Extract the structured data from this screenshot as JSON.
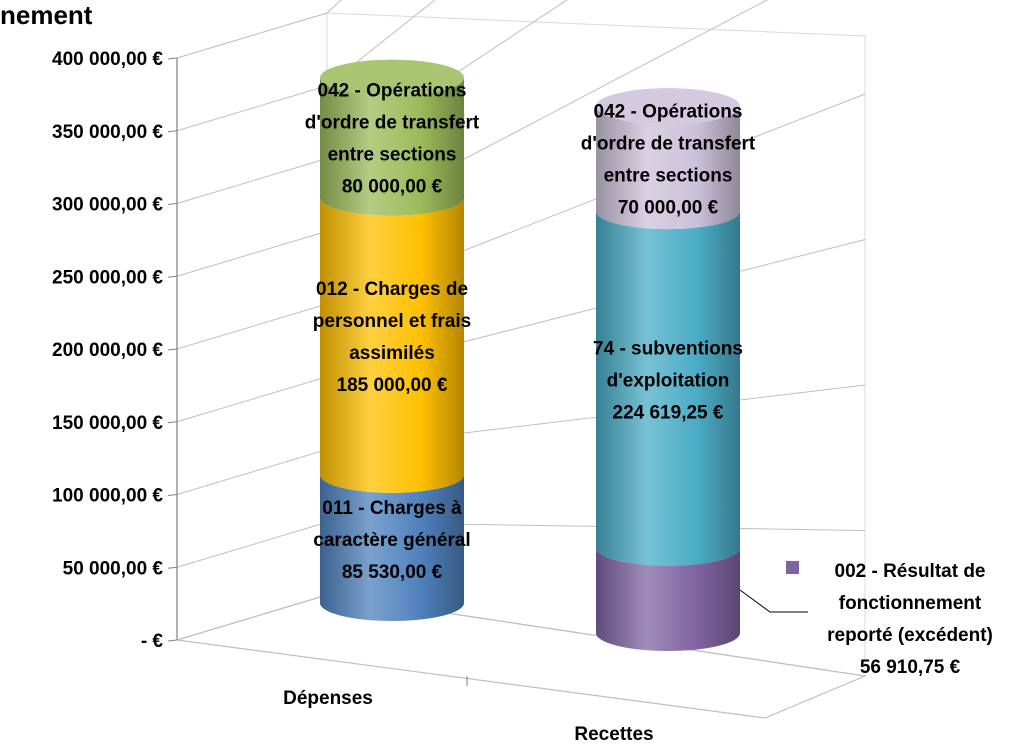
{
  "chart_data": {
    "type": "bar",
    "title": "nement",
    "categories": [
      "Dépenses",
      "Recettes"
    ],
    "ylim": [
      0,
      400000
    ],
    "yticks": [
      0,
      50000,
      100000,
      150000,
      200000,
      250000,
      300000,
      350000,
      400000
    ],
    "ytick_labels": [
      "-  €",
      "50 000,00 €",
      "100 000,00 €",
      "150 000,00 €",
      "200 000,00 €",
      "250 000,00 €",
      "300 000,00 €",
      "350 000,00 €",
      "400 000,00 €"
    ],
    "grid": true,
    "stacked": true,
    "style": "3d-cylinder",
    "stacks": [
      {
        "category": "Dépenses",
        "segments": [
          {
            "value": 85530.0,
            "color": "#4f81bd",
            "label_lines": [
              "011 - Charges à",
              "caractère général",
              "85 530,00 €"
            ]
          },
          {
            "value": 185000.0,
            "color": "#ffc000",
            "label_lines": [
              "012 - Charges de",
              "personnel et frais",
              "assimilés",
              "185 000,00 €"
            ]
          },
          {
            "value": 80000.0,
            "color": "#9bbb59",
            "label_lines": [
              "042 - Opérations",
              "d'ordre de transfert",
              "entre sections",
              "80 000,00 €"
            ]
          }
        ]
      },
      {
        "category": "Recettes",
        "segments": [
          {
            "value": 56910.75,
            "color": "#8064a2",
            "label_lines": []
          },
          {
            "value": 224619.25,
            "color": "#4bacc6",
            "label_lines": [
              "74 - subventions",
              "d'exploitation",
              "224 619,25 €"
            ]
          },
          {
            "value": 70000.0,
            "color": "#ccc1da",
            "label_lines": [
              "042 - Opérations",
              "d'ordre de transfert",
              "entre sections",
              "70 000,00 €"
            ]
          }
        ]
      }
    ],
    "legend": {
      "position": "right",
      "color": "#8064a2",
      "lines": [
        "002 - Résultat de",
        "fonctionnement",
        "reporté (excédent)",
        "56 910,75 €"
      ]
    }
  }
}
